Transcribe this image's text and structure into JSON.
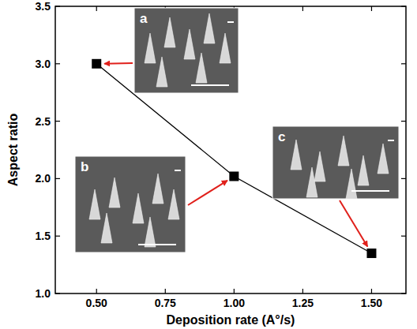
{
  "chart_data": {
    "type": "line",
    "x_label": "Deposition rate (A°/s)",
    "y_label": "Aspect ratio",
    "x": [
      0.5,
      1.0,
      1.5
    ],
    "values": [
      3.0,
      2.02,
      1.35
    ],
    "color": "#000000",
    "marker": "square",
    "line_style": "solid",
    "xlim": [
      0.35,
      1.625
    ],
    "ylim": [
      1.0,
      3.5
    ],
    "xticks": [
      {
        "value": 0.5,
        "label": "0.50"
      },
      0.75,
      {
        "value": 1.0,
        "label": "1.00"
      },
      1.25,
      {
        "value": 1.5,
        "label": "1.50"
      }
    ],
    "yticks": [
      {
        "value": 1.0,
        "label": "1.0"
      },
      1.5,
      {
        "value": 2.0,
        "label": "2.0"
      },
      2.5,
      {
        "value": 3.0,
        "label": "3.0"
      },
      3.5
    ],
    "annotations": [
      "a",
      "b",
      "c"
    ],
    "grid": false
  }
}
